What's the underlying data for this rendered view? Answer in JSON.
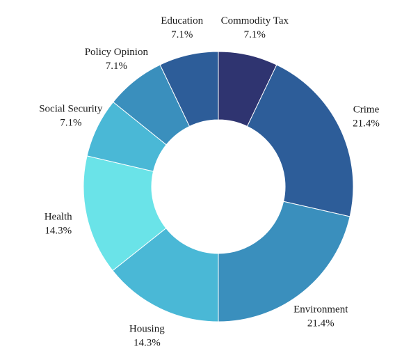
{
  "chart_data": {
    "type": "pie",
    "subtype": "donut",
    "title": "",
    "legend": "none",
    "categories": [
      "Commodity Tax",
      "Crime",
      "Environment",
      "Housing",
      "Health",
      "Social Security",
      "Policy Opinion",
      "Education"
    ],
    "values": [
      7.1,
      21.4,
      21.4,
      14.3,
      14.3,
      7.1,
      7.1,
      7.1
    ],
    "value_labels": [
      "7.1%",
      "21.4%",
      "21.4%",
      "14.3%",
      "14.3%",
      "7.1%",
      "7.1%",
      "7.1%"
    ],
    "colors": [
      "#2f3470",
      "#2d5d99",
      "#3a8fbd",
      "#4ab8d6",
      "#6ae3e8",
      "#4ab8d6",
      "#3a8fbd",
      "#2d5d99"
    ]
  }
}
